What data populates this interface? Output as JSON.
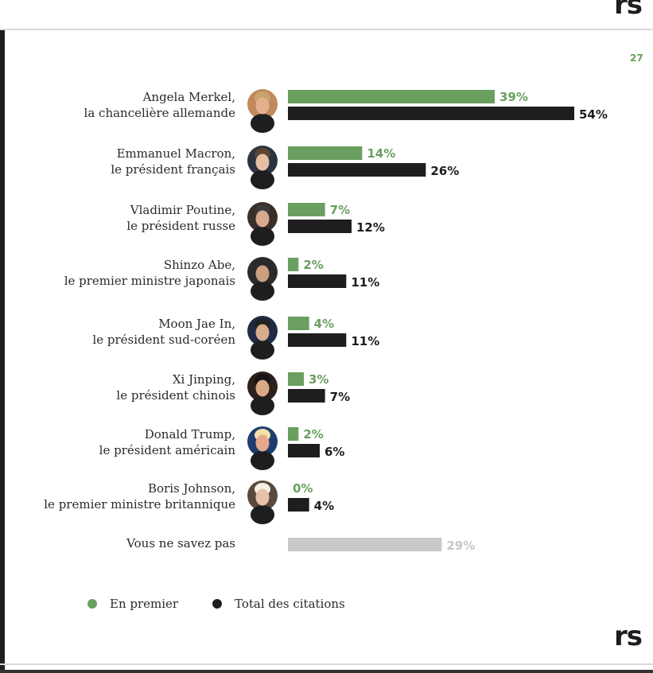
{
  "page": {
    "page_number": "27",
    "logo": "rs"
  },
  "legend": [
    {
      "label": "En premier",
      "color": "#6a9f5f"
    },
    {
      "label": "Total des citations",
      "color": "#1e1e1e"
    }
  ],
  "chart_data": {
    "type": "bar",
    "orientation": "horizontal",
    "categories": [
      {
        "name": "Angela Merkel,",
        "role": "la chancelière allemande",
        "avatar": "Angela Merkel photo"
      },
      {
        "name": "Emmanuel Macron,",
        "role": "le président français",
        "avatar": "Emmanuel Macron photo"
      },
      {
        "name": "Vladimir Poutine,",
        "role": "le président russe",
        "avatar": "Vladimir Poutine photo"
      },
      {
        "name": "Shinzo Abe,",
        "role": "le premier ministre japonais",
        "avatar": "Shinzo Abe photo"
      },
      {
        "name": "Moon Jae In,",
        "role": "le président sud-coréen",
        "avatar": "Moon Jae In photo"
      },
      {
        "name": "Xi Jinping,",
        "role": "le président chinois",
        "avatar": "Xi Jinping photo"
      },
      {
        "name": "Donald Trump,",
        "role": "le président américain",
        "avatar": "Donald Trump photo"
      },
      {
        "name": "Boris Johnson,",
        "role": "le premier ministre britannique",
        "avatar": "Boris Johnson photo"
      },
      {
        "name": "Vous ne savez pas",
        "role": "",
        "avatar": ""
      }
    ],
    "series": [
      {
        "name": "En premier",
        "color": "#6a9f5f",
        "values": [
          39,
          14,
          7,
          2,
          4,
          3,
          2,
          0,
          null
        ]
      },
      {
        "name": "Total des citations",
        "color": "#1e1e1e",
        "values": [
          54,
          26,
          12,
          11,
          11,
          7,
          6,
          4,
          null
        ]
      },
      {
        "name": "Vous ne savez pas",
        "color": "#c8c8c8",
        "values": [
          null,
          null,
          null,
          null,
          null,
          null,
          null,
          null,
          29
        ]
      }
    ],
    "value_suffix": "%",
    "xlim": [
      0,
      54
    ],
    "title": "",
    "xlabel": "",
    "ylabel": "",
    "grid": false,
    "legend_position": "bottom-left"
  }
}
